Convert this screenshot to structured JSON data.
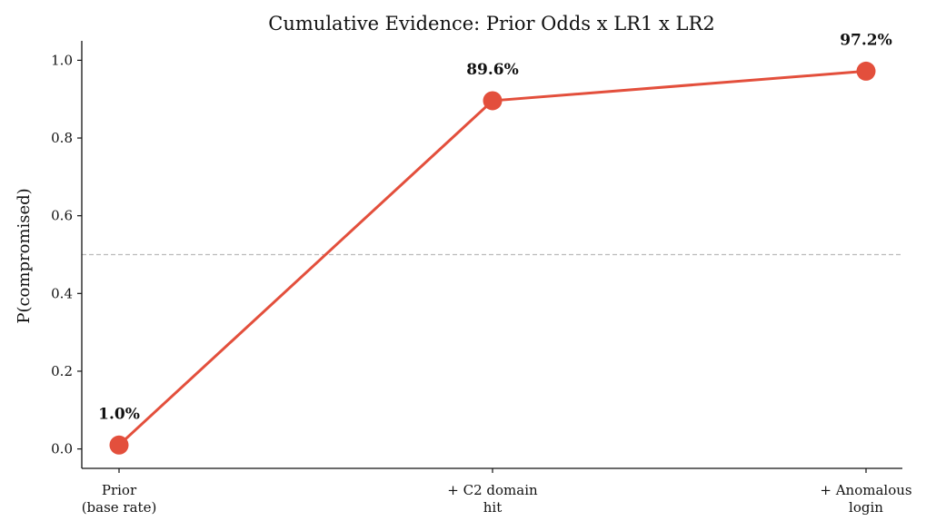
{
  "chart_data": {
    "type": "line",
    "title": "Cumulative Evidence: Prior Odds x LR1 x LR2",
    "ylabel": "P(compromised)",
    "xlabel": "",
    "categories": [
      [
        "Prior",
        "(base rate)"
      ],
      [
        "+ C2 domain",
        "hit"
      ],
      [
        "+ Anomalous",
        "login"
      ]
    ],
    "values": [
      0.01,
      0.896,
      0.972
    ],
    "data_labels": [
      "1.0%",
      "89.6%",
      "97.2%"
    ],
    "ylim": [
      -0.05,
      1.05
    ],
    "yticks": [
      0.0,
      0.2,
      0.4,
      0.6,
      0.8,
      1.0
    ],
    "ytick_labels": [
      "0.0",
      "0.2",
      "0.4",
      "0.6",
      "0.8",
      "1.0"
    ],
    "reference_line": 0.5,
    "grid": false,
    "colors": {
      "line": "#e34f3c",
      "marker": "#e34f3c",
      "reference": "#bbbbbb",
      "axis": "#111111"
    }
  }
}
